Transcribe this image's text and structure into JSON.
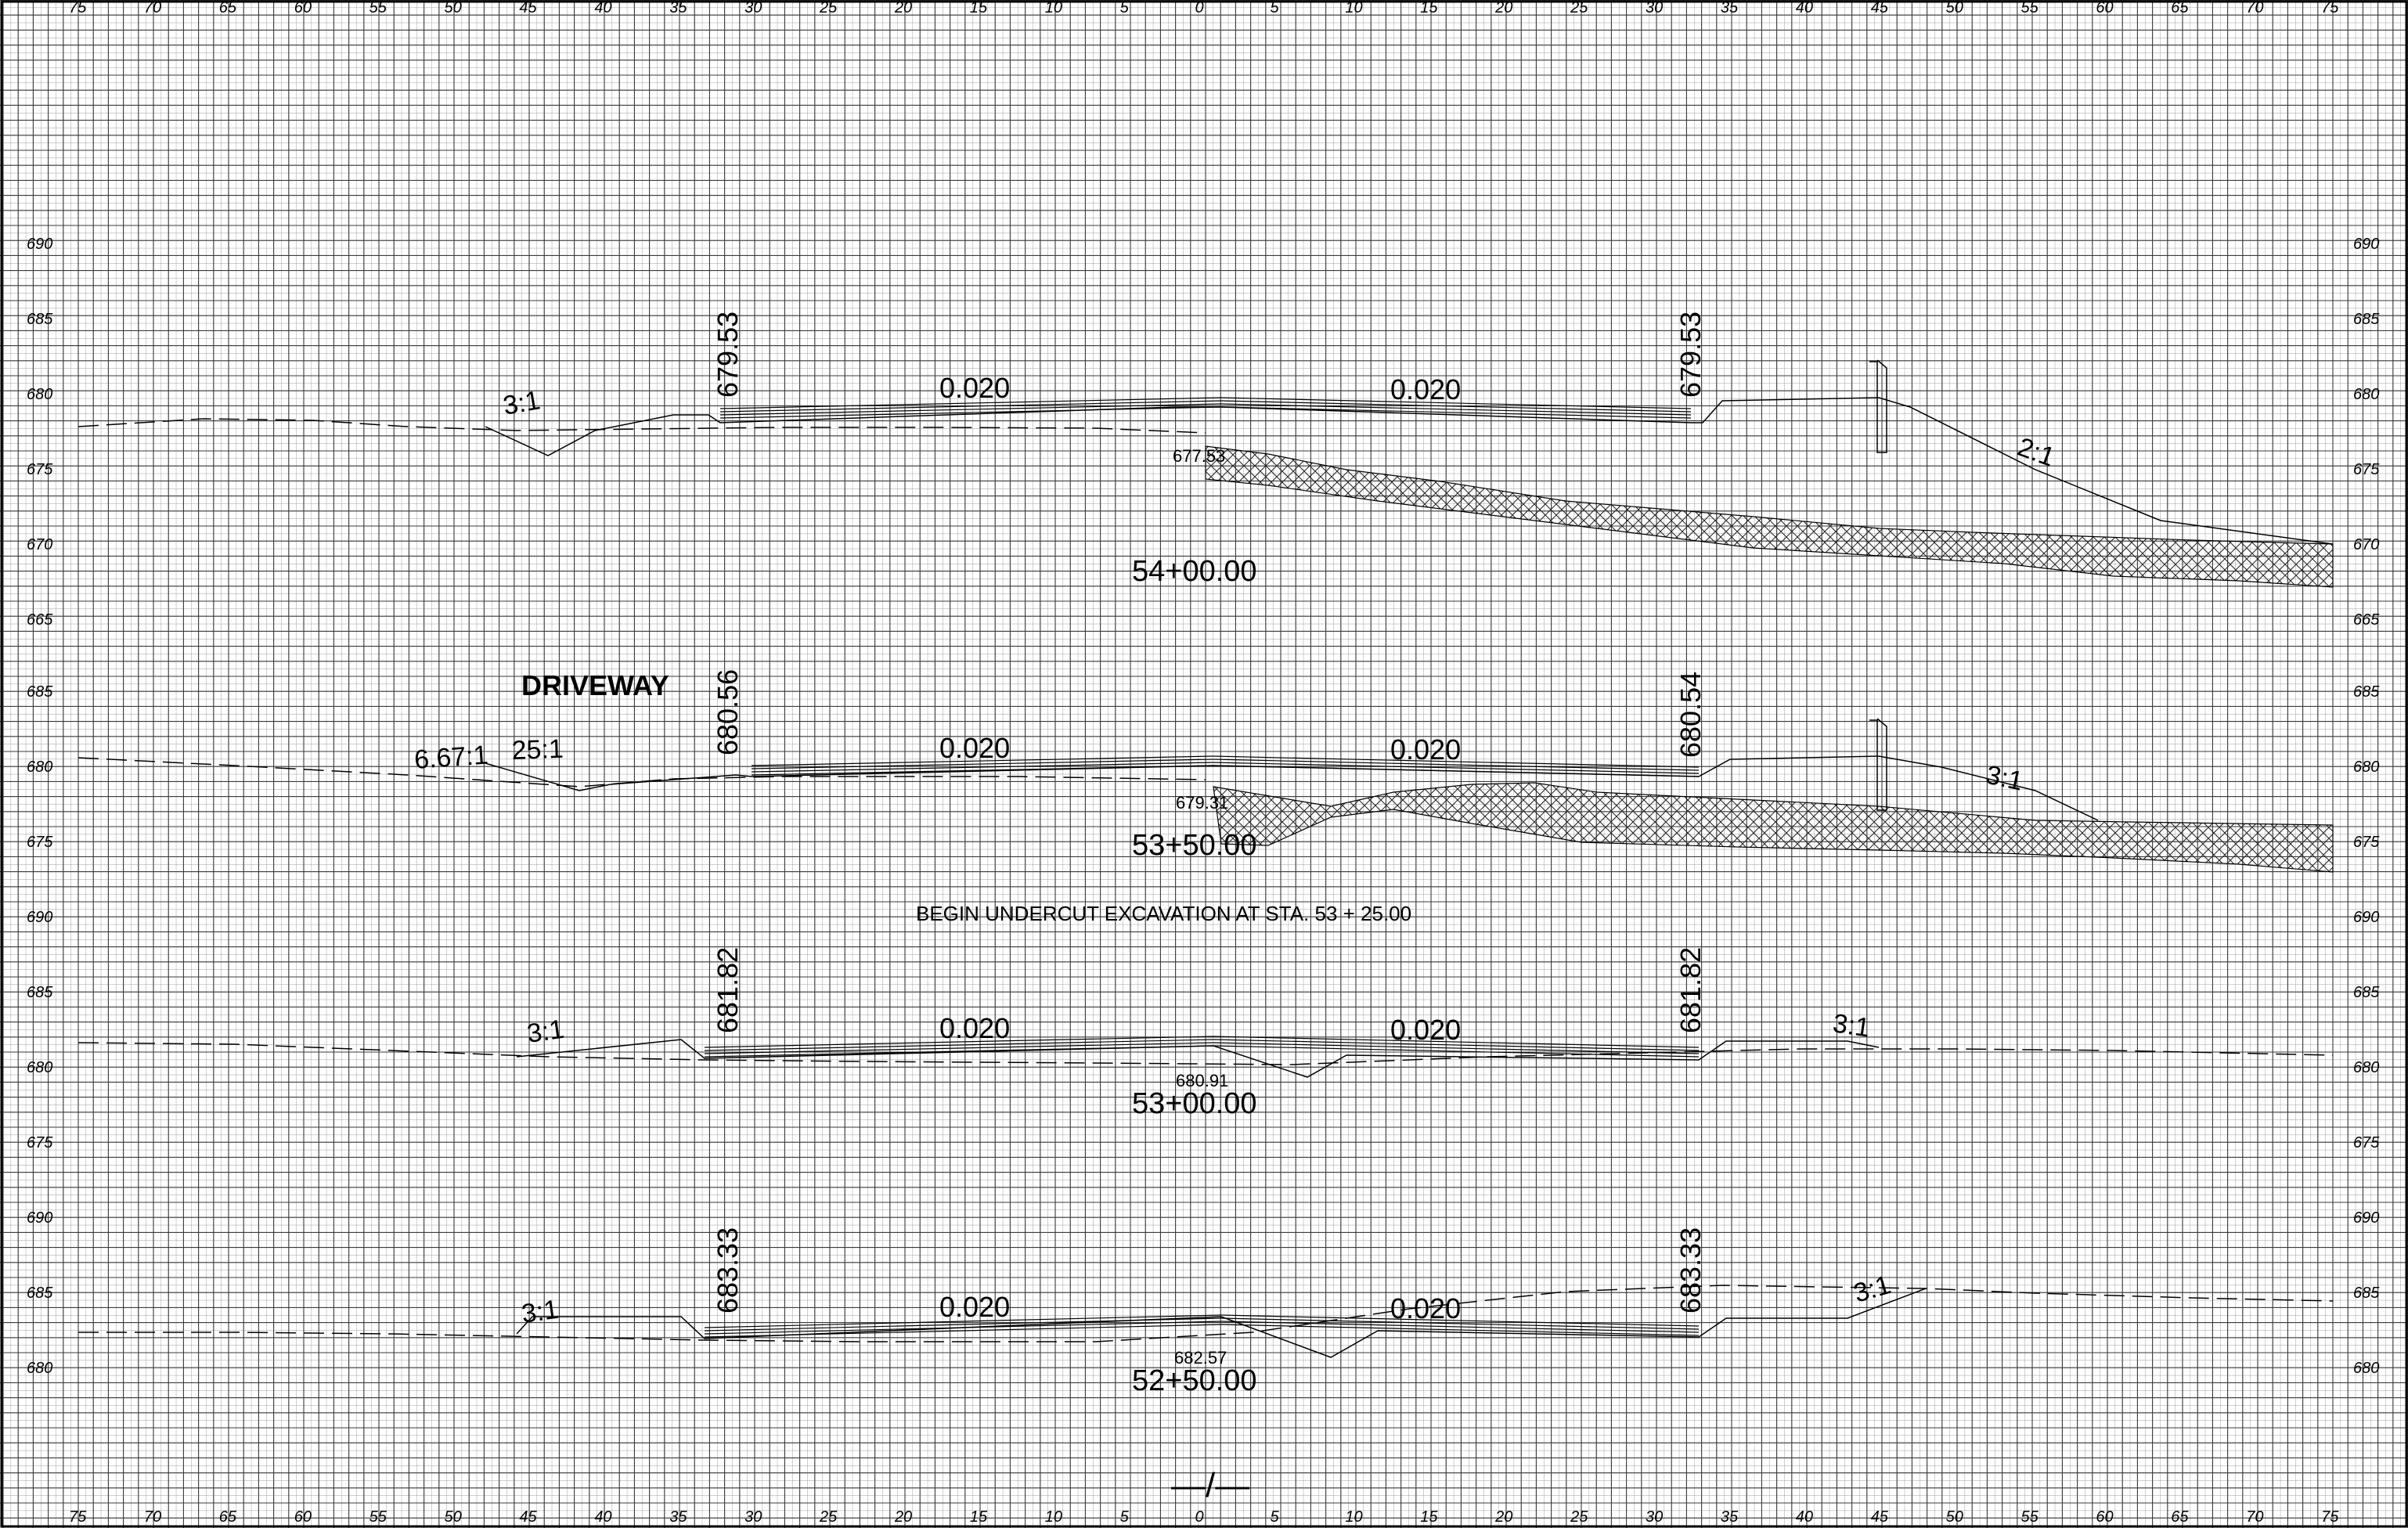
{
  "offset_labels": [
    "75",
    "70",
    "65",
    "60",
    "55",
    "50",
    "45",
    "40",
    "35",
    "30",
    "25",
    "20",
    "15",
    "10",
    "5",
    "0",
    "5",
    "10",
    "15",
    "20",
    "25",
    "30",
    "35",
    "40",
    "45",
    "50",
    "55",
    "60",
    "65",
    "70",
    "75"
  ],
  "sections": [
    {
      "station": "54+00.00",
      "elevation_ticks": [
        "690",
        "685",
        "680",
        "675",
        "670",
        "665"
      ],
      "left_shoulder_elev": "679.53",
      "right_shoulder_elev": "679.53",
      "left_grade": "0.020",
      "right_grade": "0.020",
      "left_slope": "3:1",
      "right_slope": "2:1",
      "pgl_elev": "677.53"
    },
    {
      "station": "53+50.00",
      "elevation_ticks": [
        "685",
        "680",
        "675"
      ],
      "left_shoulder_elev": "680.56",
      "right_shoulder_elev": "680.54",
      "left_grade": "0.020",
      "right_grade": "0.020",
      "left_slope": "6.67:1",
      "left_slope_2": "25:1",
      "right_slope": "3:1",
      "pgl_elev": "679.31",
      "label": "DRIVEWAY"
    },
    {
      "station": "53+00.00",
      "elevation_ticks": [
        "690",
        "685",
        "680",
        "675"
      ],
      "left_shoulder_elev": "681.82",
      "right_shoulder_elev": "681.82",
      "left_grade": "0.020",
      "right_grade": "0.020",
      "left_slope": "3:1",
      "right_slope": "3:1",
      "pgl_elev": "680.91",
      "note": "BEGIN  UNDERCUT  EXCAVATION  AT  STA.  53 + 25.00"
    },
    {
      "station": "52+50.00",
      "elevation_ticks": [
        "690",
        "685",
        "680"
      ],
      "left_shoulder_elev": "683.33",
      "right_shoulder_elev": "683.33",
      "left_grade": "0.020",
      "right_grade": "0.020",
      "left_slope": "3:1",
      "right_slope": "3:1",
      "pgl_elev": "682.57"
    }
  ],
  "centerline_mark": "—/—"
}
